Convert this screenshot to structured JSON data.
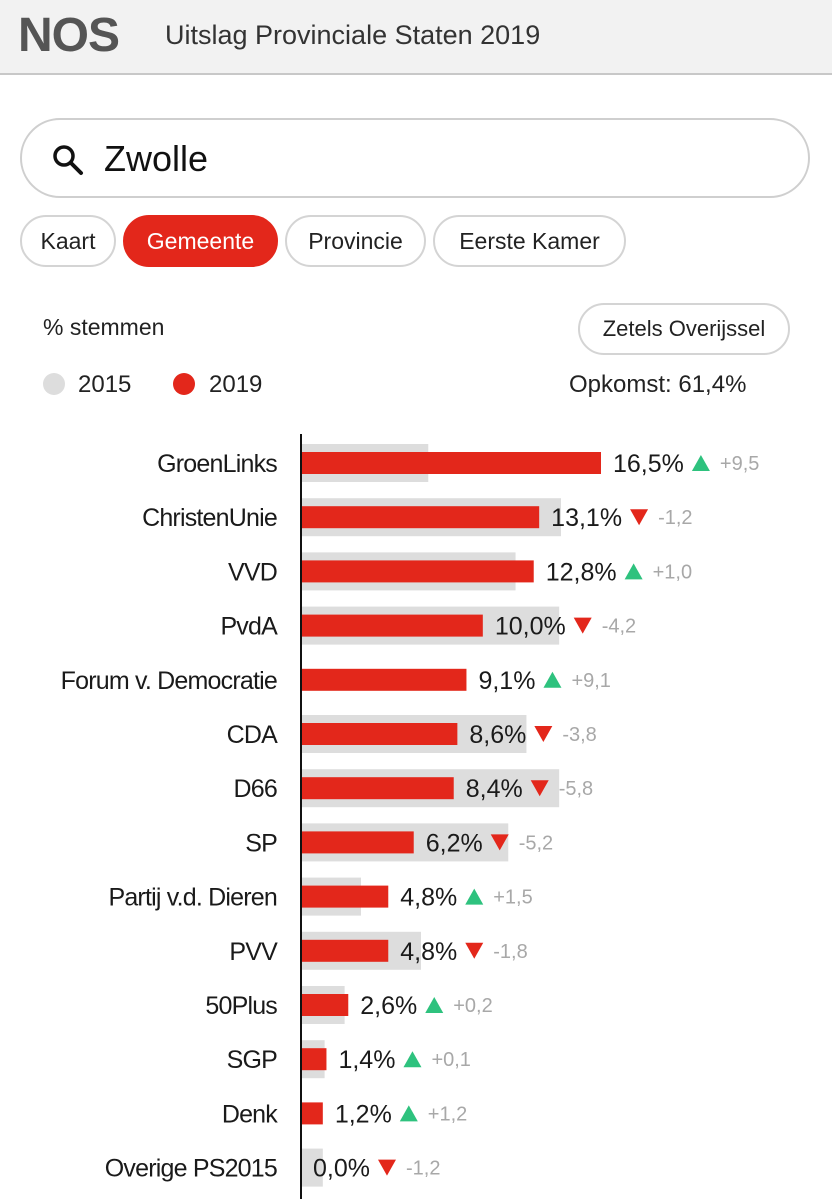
{
  "header": {
    "logo": "NOS",
    "title": "Uitslag Provinciale Staten 2019"
  },
  "search": {
    "value": "Zwolle"
  },
  "tabs": [
    "Kaart",
    "Gemeente",
    "Provincie",
    "Eerste Kamer"
  ],
  "active_tab": "Gemeente",
  "metric_label": "% stemmen",
  "seats_button": "Zetels Overijssel",
  "legend": [
    {
      "label": "2015",
      "color": "#dddddd"
    },
    {
      "label": "2019",
      "color": "#e3271b"
    }
  ],
  "turnout": "Opkomst: 61,4%",
  "colors": {
    "accent": "#e3271b",
    "up": "#2ec27e",
    "down": "#e3271b",
    "bar2015": "#dddddd",
    "delta": "#a8a8a8"
  },
  "chart_data": {
    "type": "bar",
    "orientation": "horizontal",
    "categories": [
      "GroenLinks",
      "ChristenUnie",
      "VVD",
      "PvdA",
      "Forum v. Democratie",
      "CDA",
      "D66",
      "SP",
      "Partij v.d. Dieren",
      "PVV",
      "50Plus",
      "SGP",
      "Denk",
      "Overige PS2015"
    ],
    "series": [
      {
        "name": "2015",
        "values": [
          7.0,
          14.3,
          11.8,
          14.2,
          0.0,
          12.4,
          14.2,
          11.4,
          3.3,
          6.6,
          2.4,
          1.3,
          0.0,
          1.2
        ]
      },
      {
        "name": "2019",
        "values": [
          16.5,
          13.1,
          12.8,
          10.0,
          9.1,
          8.6,
          8.4,
          6.2,
          4.8,
          4.8,
          2.6,
          1.4,
          1.2,
          0.0
        ]
      }
    ],
    "value_labels": [
      "16,5%",
      "13,1%",
      "12,8%",
      "10,0%",
      "9,1%",
      "8,6%",
      "8,4%",
      "6,2%",
      "4,8%",
      "4,8%",
      "2,6%",
      "1,4%",
      "1,2%",
      "0,0%"
    ],
    "change_labels": [
      "+9,5",
      "-1,2",
      "+1,0",
      "-4,2",
      "+9,1",
      "-3,8",
      "-5,8",
      "-5,2",
      "+1,5",
      "-1,8",
      "+0,2",
      "+0,1",
      "+1,2",
      "-1,2"
    ],
    "xlim": [
      0,
      16.5
    ]
  }
}
